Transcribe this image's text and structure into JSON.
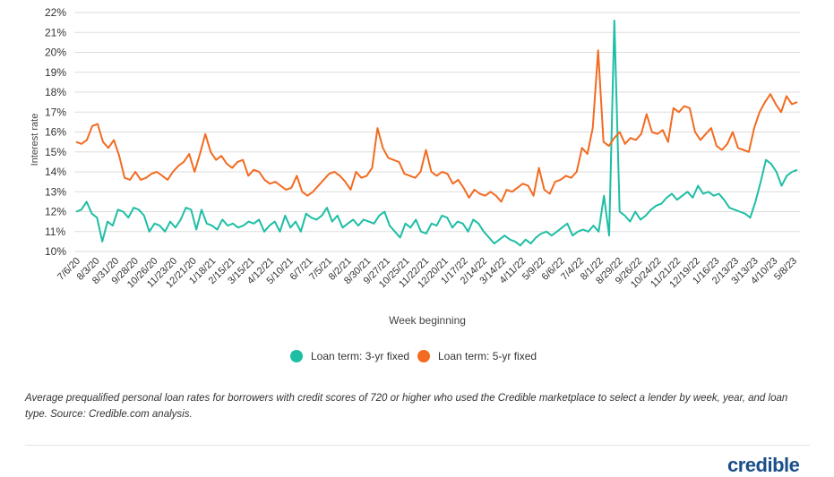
{
  "chart_data": {
    "type": "line",
    "ylabel": "Interest rate",
    "xlabel": "Week beginning",
    "ylim": [
      10,
      22
    ],
    "yticks": [
      "10%",
      "11%",
      "12%",
      "13%",
      "14%",
      "15%",
      "16%",
      "17%",
      "18%",
      "19%",
      "20%",
      "21%",
      "22%"
    ],
    "x_ticks": [
      "7/6/20",
      "8/3/20",
      "8/31/20",
      "9/28/20",
      "10/26/20",
      "11/23/20",
      "12/21/20",
      "1/18/21",
      "2/15/21",
      "3/15/21",
      "4/12/21",
      "5/10/21",
      "6/7/21",
      "7/5/21",
      "8/2/21",
      "8/30/21",
      "9/27/21",
      "10/25/21",
      "11/22/21",
      "12/20/21",
      "1/17/22",
      "2/14/22",
      "3/14/22",
      "4/11/22",
      "5/9/22",
      "6/6/22",
      "7/4/22",
      "8/1/22",
      "8/29/22",
      "9/26/22",
      "10/24/22",
      "11/21/22",
      "12/19/22",
      "1/16/23",
      "2/13/23",
      "3/13/23",
      "4/10/23",
      "5/8/23"
    ],
    "grid": true,
    "legend_position": "bottom",
    "series": [
      {
        "name": "Loan term: 3-yr fixed",
        "color": "#1ebea5",
        "values": [
          12.0,
          12.1,
          12.5,
          11.9,
          11.7,
          10.5,
          11.5,
          11.3,
          12.1,
          12.0,
          11.7,
          12.2,
          12.1,
          11.8,
          11.0,
          11.4,
          11.3,
          11.0,
          11.5,
          11.2,
          11.6,
          12.2,
          12.1,
          11.1,
          12.1,
          11.4,
          11.3,
          11.1,
          11.6,
          11.3,
          11.4,
          11.2,
          11.3,
          11.5,
          11.4,
          11.6,
          11.0,
          11.3,
          11.5,
          11.0,
          11.8,
          11.2,
          11.5,
          11.0,
          11.9,
          11.7,
          11.6,
          11.8,
          12.2,
          11.5,
          11.8,
          11.2,
          11.4,
          11.6,
          11.3,
          11.6,
          11.5,
          11.4,
          11.8,
          12.0,
          11.3,
          11.0,
          10.7,
          11.4,
          11.2,
          11.6,
          11.0,
          10.9,
          11.4,
          11.3,
          11.8,
          11.7,
          11.2,
          11.5,
          11.4,
          11.0,
          11.6,
          11.4,
          11.0,
          10.7,
          10.4,
          10.6,
          10.8,
          10.6,
          10.5,
          10.3,
          10.6,
          10.4,
          10.7,
          10.9,
          11.0,
          10.8,
          11.0,
          11.2,
          11.4,
          10.8,
          11.0,
          11.1,
          11.0,
          11.3,
          11.0,
          12.8,
          10.8,
          21.6,
          12.0,
          11.8,
          11.5,
          12.0,
          11.6,
          11.8,
          12.1,
          12.3,
          12.4,
          12.7,
          12.9,
          12.6,
          12.8,
          13.0,
          12.7,
          13.3,
          12.9,
          13.0,
          12.8,
          12.9,
          12.6,
          12.2,
          12.1,
          12.0,
          11.9,
          11.7,
          12.5,
          13.5,
          14.6,
          14.4,
          14.0,
          13.3,
          13.8,
          14.0,
          14.1
        ]
      },
      {
        "name": "Loan term: 5-yr fixed",
        "color": "#f26b21",
        "values": [
          15.5,
          15.4,
          15.6,
          16.3,
          16.4,
          15.5,
          15.2,
          15.6,
          14.8,
          13.7,
          13.6,
          14.0,
          13.6,
          13.7,
          13.9,
          14.0,
          13.8,
          13.6,
          14.0,
          14.3,
          14.5,
          14.9,
          14.0,
          14.9,
          15.9,
          15.0,
          14.6,
          14.8,
          14.4,
          14.2,
          14.5,
          14.6,
          13.8,
          14.1,
          14.0,
          13.6,
          13.4,
          13.5,
          13.3,
          13.1,
          13.2,
          13.8,
          13.0,
          12.8,
          13.0,
          13.3,
          13.6,
          13.9,
          14.0,
          13.8,
          13.5,
          13.1,
          14.0,
          13.7,
          13.8,
          14.2,
          16.2,
          15.2,
          14.7,
          14.6,
          14.5,
          13.9,
          13.8,
          13.7,
          14.0,
          15.1,
          14.0,
          13.8,
          14.0,
          13.9,
          13.4,
          13.6,
          13.2,
          12.7,
          13.1,
          12.9,
          12.8,
          13.0,
          12.8,
          12.5,
          13.1,
          13.0,
          13.2,
          13.4,
          13.3,
          12.8,
          14.2,
          13.1,
          12.9,
          13.5,
          13.6,
          13.8,
          13.7,
          14.0,
          15.2,
          14.9,
          16.2,
          20.1,
          15.5,
          15.3,
          15.7,
          16.0,
          15.4,
          15.7,
          15.6,
          15.9,
          16.9,
          16.0,
          15.9,
          16.1,
          15.5,
          17.2,
          17.0,
          17.3,
          17.2,
          16.0,
          15.6,
          15.9,
          16.2,
          15.3,
          15.1,
          15.4,
          16.0,
          15.2,
          15.1,
          15.0,
          16.2,
          17.0,
          17.5,
          17.9,
          17.4,
          17.0,
          17.8,
          17.4,
          17.5
        ]
      }
    ]
  },
  "caption": "Average prequalified personal loan rates for borrowers with credit scores of 720 or higher who used the Credible marketplace to select a lender by week, year, and loan type. Source: Credible.com analysis.",
  "brand": "credible"
}
